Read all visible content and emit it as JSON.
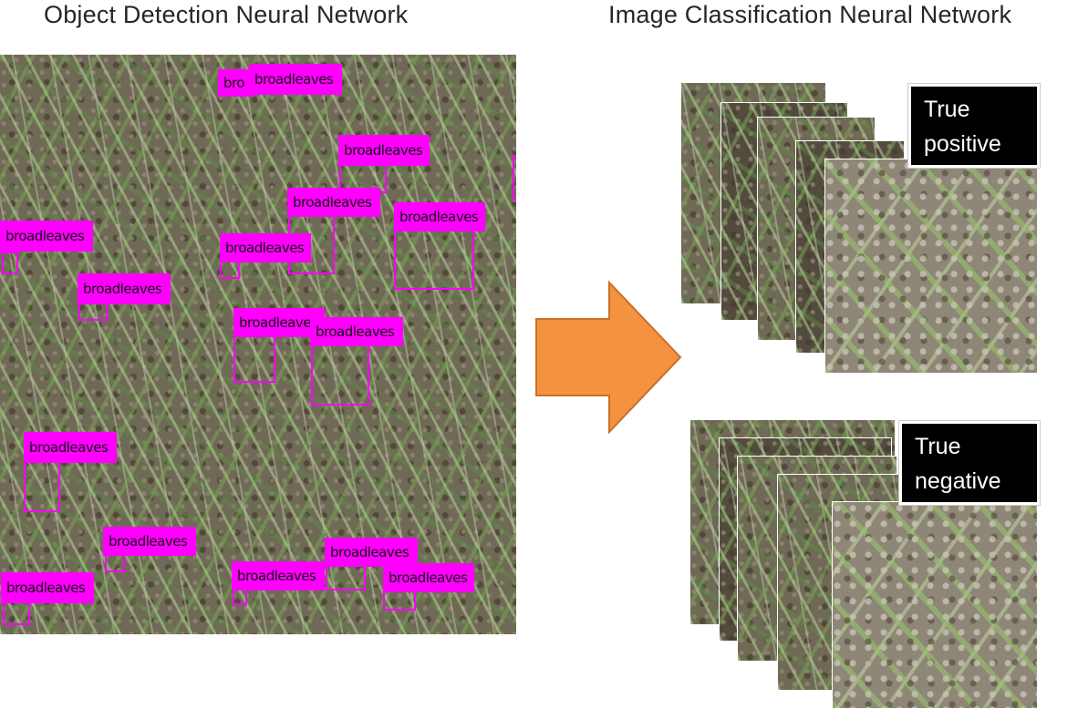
{
  "titles": {
    "left": "Object Detection Neural Network",
    "right": "Image Classification Neural Network"
  },
  "detection": {
    "label_text": "broadleaves",
    "labels": [
      {
        "text": "bro"
      },
      {
        "text": "broadleaves"
      },
      {
        "text": "broadleaves"
      },
      {
        "text": "broadleaves"
      },
      {
        "text": "broadleaves"
      },
      {
        "text": "broadleaves"
      },
      {
        "text": "broadleaves"
      },
      {
        "text": "broadleaves"
      },
      {
        "text": "broadleaves"
      },
      {
        "text": "broadleaves"
      },
      {
        "text": "broadleaves"
      },
      {
        "text": "broadleaves"
      },
      {
        "text": "broadleaves"
      },
      {
        "text": "broadleaves"
      },
      {
        "text": "broadleaves"
      },
      {
        "text": "broadleaves"
      }
    ]
  },
  "arrow": {
    "color": "#f4923f",
    "direction": "right"
  },
  "classification": {
    "positive_label": "True\npositive",
    "negative_label": "True\nnegative"
  },
  "colors": {
    "bbox": "#ff00ff",
    "arrow": "#f4923f",
    "tag_bg": "#000000"
  }
}
